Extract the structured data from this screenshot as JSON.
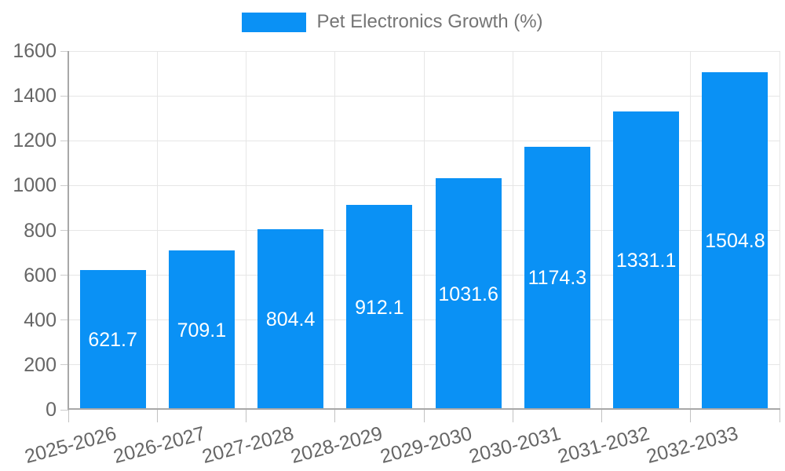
{
  "chart_data": {
    "type": "bar",
    "title": "",
    "legend_label": "Pet Electronics Growth (%)",
    "legend_position": "top",
    "categories": [
      "2025-2026",
      "2026-2027",
      "2027-2028",
      "2028-2029",
      "2029-2030",
      "2030-2031",
      "2031-2032",
      "2032-2033"
    ],
    "values": [
      621.7,
      709.1,
      804.4,
      912.1,
      1031.6,
      1174.3,
      1331.1,
      1504.8
    ],
    "value_labels": [
      "621.7",
      "709.1",
      "804.4",
      "912.1",
      "1031.6",
      "1174.3",
      "1331.1",
      "1504.8"
    ],
    "xlabel": "",
    "ylabel": "",
    "ylim": [
      0,
      1600
    ],
    "ytick_step": 200,
    "yticks": [
      0,
      200,
      400,
      600,
      800,
      1000,
      1200,
      1400,
      1600
    ],
    "grid": true,
    "x_tick_rotation_deg": -15,
    "bar_color": "#0a91f5",
    "value_label_color": "#ffffff",
    "axis_label_color": "#666666",
    "legend_text_color": "#757575",
    "gridline_color": "#e6e6e6",
    "axis_line_color": "#a8a8a8"
  }
}
